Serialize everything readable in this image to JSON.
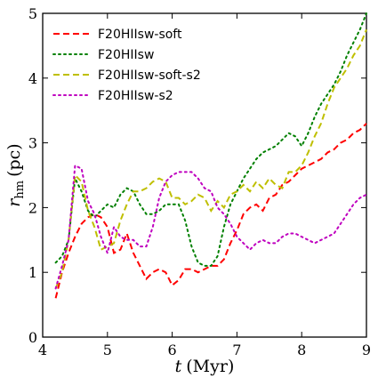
{
  "chart_data": {
    "type": "line",
    "xlabel_var": "t",
    "xlabel_unit": "(Myr)",
    "ylabel_var": "r",
    "ylabel_sub": "hm",
    "ylabel_unit": "(pc)",
    "xlim": [
      4,
      9
    ],
    "ylim": [
      0,
      5
    ],
    "xticks": [
      4,
      5,
      6,
      7,
      8,
      9
    ],
    "yticks": [
      0,
      1,
      2,
      3,
      4,
      5
    ],
    "grid": false,
    "legend_position": "upper-left",
    "series": [
      {
        "name": "F20HIIsw-soft",
        "color": "#ff0000",
        "dash": "dashed",
        "x": [
          4.2,
          4.3,
          4.4,
          4.5,
          4.6,
          4.7,
          4.8,
          4.9,
          5.0,
          5.1,
          5.2,
          5.3,
          5.4,
          5.5,
          5.6,
          5.7,
          5.8,
          5.9,
          6.0,
          6.1,
          6.2,
          6.3,
          6.4,
          6.5,
          6.6,
          6.7,
          6.8,
          6.9,
          7.0,
          7.1,
          7.2,
          7.3,
          7.4,
          7.5,
          7.6,
          7.7,
          7.8,
          7.9,
          8.0,
          8.1,
          8.2,
          8.3,
          8.4,
          8.5,
          8.6,
          8.7,
          8.8,
          8.9,
          9.0
        ],
        "y": [
          0.6,
          1.0,
          1.3,
          1.55,
          1.75,
          1.85,
          1.9,
          1.85,
          1.7,
          1.3,
          1.35,
          1.6,
          1.3,
          1.1,
          0.9,
          1.0,
          1.05,
          1.0,
          0.8,
          0.88,
          1.05,
          1.05,
          1.0,
          1.05,
          1.1,
          1.1,
          1.2,
          1.45,
          1.65,
          1.9,
          2.0,
          2.05,
          1.95,
          2.15,
          2.2,
          2.35,
          2.4,
          2.5,
          2.6,
          2.65,
          2.7,
          2.75,
          2.85,
          2.9,
          3.0,
          3.05,
          3.15,
          3.2,
          3.3
        ]
      },
      {
        "name": "F20HIIsw",
        "color": "#008000",
        "dash": "dotted",
        "x": [
          4.2,
          4.3,
          4.4,
          4.5,
          4.6,
          4.7,
          4.8,
          4.9,
          5.0,
          5.1,
          5.2,
          5.3,
          5.4,
          5.5,
          5.6,
          5.7,
          5.8,
          5.9,
          6.0,
          6.1,
          6.2,
          6.3,
          6.4,
          6.5,
          6.6,
          6.7,
          6.8,
          6.9,
          7.0,
          7.1,
          7.2,
          7.3,
          7.4,
          7.5,
          7.6,
          7.7,
          7.8,
          7.9,
          8.0,
          8.1,
          8.2,
          8.3,
          8.4,
          8.5,
          8.6,
          8.7,
          8.8,
          8.9,
          9.0
        ],
        "y": [
          1.15,
          1.25,
          1.5,
          2.45,
          2.25,
          1.95,
          1.85,
          1.95,
          2.05,
          2.0,
          2.2,
          2.3,
          2.25,
          2.05,
          1.9,
          1.9,
          1.95,
          2.05,
          2.05,
          2.05,
          1.8,
          1.4,
          1.15,
          1.1,
          1.1,
          1.25,
          1.7,
          2.05,
          2.25,
          2.45,
          2.6,
          2.75,
          2.85,
          2.9,
          2.95,
          3.05,
          3.15,
          3.1,
          2.95,
          3.15,
          3.4,
          3.6,
          3.75,
          3.9,
          4.1,
          4.35,
          4.55,
          4.75,
          5.0
        ]
      },
      {
        "name": "F20HIIsw-soft-s2",
        "color": "#bfbf00",
        "dash": "dashed",
        "x": [
          4.2,
          4.3,
          4.4,
          4.5,
          4.6,
          4.7,
          4.8,
          4.9,
          5.0,
          5.1,
          5.2,
          5.3,
          5.4,
          5.5,
          5.6,
          5.7,
          5.8,
          5.9,
          6.0,
          6.1,
          6.2,
          6.3,
          6.4,
          6.5,
          6.6,
          6.7,
          6.8,
          6.9,
          7.0,
          7.1,
          7.2,
          7.3,
          7.4,
          7.5,
          7.6,
          7.7,
          7.8,
          7.9,
          8.0,
          8.1,
          8.2,
          8.3,
          8.4,
          8.5,
          8.6,
          8.7,
          8.8,
          8.9,
          9.0
        ],
        "y": [
          0.75,
          1.0,
          1.5,
          2.5,
          2.4,
          1.95,
          1.7,
          1.35,
          1.4,
          1.45,
          1.8,
          2.05,
          2.25,
          2.25,
          2.3,
          2.4,
          2.45,
          2.4,
          2.15,
          2.15,
          2.05,
          2.1,
          2.2,
          2.15,
          1.95,
          2.1,
          2.0,
          2.2,
          2.25,
          2.35,
          2.25,
          2.4,
          2.3,
          2.45,
          2.35,
          2.3,
          2.55,
          2.55,
          2.65,
          2.85,
          3.1,
          3.3,
          3.6,
          3.85,
          4.0,
          4.15,
          4.35,
          4.5,
          4.75
        ]
      },
      {
        "name": "F20HIIsw-s2",
        "color": "#bf00bf",
        "dash": "dotted",
        "x": [
          4.2,
          4.3,
          4.4,
          4.5,
          4.6,
          4.7,
          4.8,
          4.9,
          5.0,
          5.1,
          5.2,
          5.3,
          5.4,
          5.5,
          5.6,
          5.7,
          5.8,
          5.9,
          6.0,
          6.1,
          6.2,
          6.3,
          6.4,
          6.5,
          6.6,
          6.7,
          6.8,
          6.9,
          7.0,
          7.1,
          7.2,
          7.3,
          7.4,
          7.5,
          7.6,
          7.7,
          7.8,
          7.9,
          8.0,
          8.1,
          8.2,
          8.3,
          8.4,
          8.5,
          8.6,
          8.7,
          8.8,
          8.9,
          9.0
        ],
        "y": [
          0.75,
          1.1,
          1.5,
          2.65,
          2.6,
          2.1,
          1.9,
          1.55,
          1.3,
          1.7,
          1.55,
          1.5,
          1.5,
          1.4,
          1.4,
          1.7,
          2.15,
          2.4,
          2.5,
          2.55,
          2.55,
          2.55,
          2.45,
          2.3,
          2.25,
          2.0,
          1.9,
          1.75,
          1.55,
          1.45,
          1.35,
          1.45,
          1.5,
          1.45,
          1.45,
          1.55,
          1.6,
          1.6,
          1.55,
          1.5,
          1.45,
          1.5,
          1.55,
          1.6,
          1.75,
          1.9,
          2.05,
          2.15,
          2.2
        ]
      }
    ]
  }
}
